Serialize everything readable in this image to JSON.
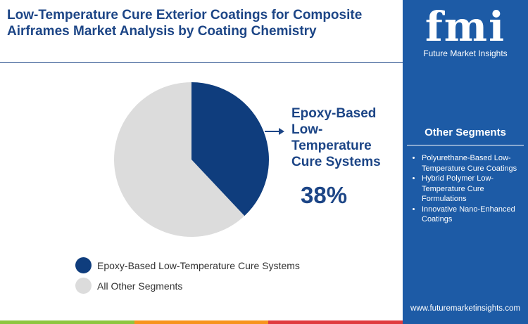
{
  "chart_data": {
    "type": "pie",
    "title": "Low-Temperature Cure Exterior Coatings for Composite Airframes Market Analysis by Coating Chemistry",
    "categories": [
      "Epoxy-Based Low-Temperature Cure Systems",
      "All Other Segments"
    ],
    "values": [
      38,
      62
    ],
    "value_labels": [
      "38%",
      null
    ],
    "colors": [
      "#0f3d7d",
      "#dcdcdc"
    ]
  },
  "sidebar": {
    "logo": "fmi",
    "brand": "Future Market Insights",
    "other_segments_title": "Other Segments",
    "other_segments": [
      "Polyurethane-Based Low-Temperature Cure Coatings",
      "Hybrid Polymer Low-Temperature Cure Formulations",
      "Innovative Nano-Enhanced Coatings"
    ],
    "website": "www.futuremarketinsights.com"
  }
}
